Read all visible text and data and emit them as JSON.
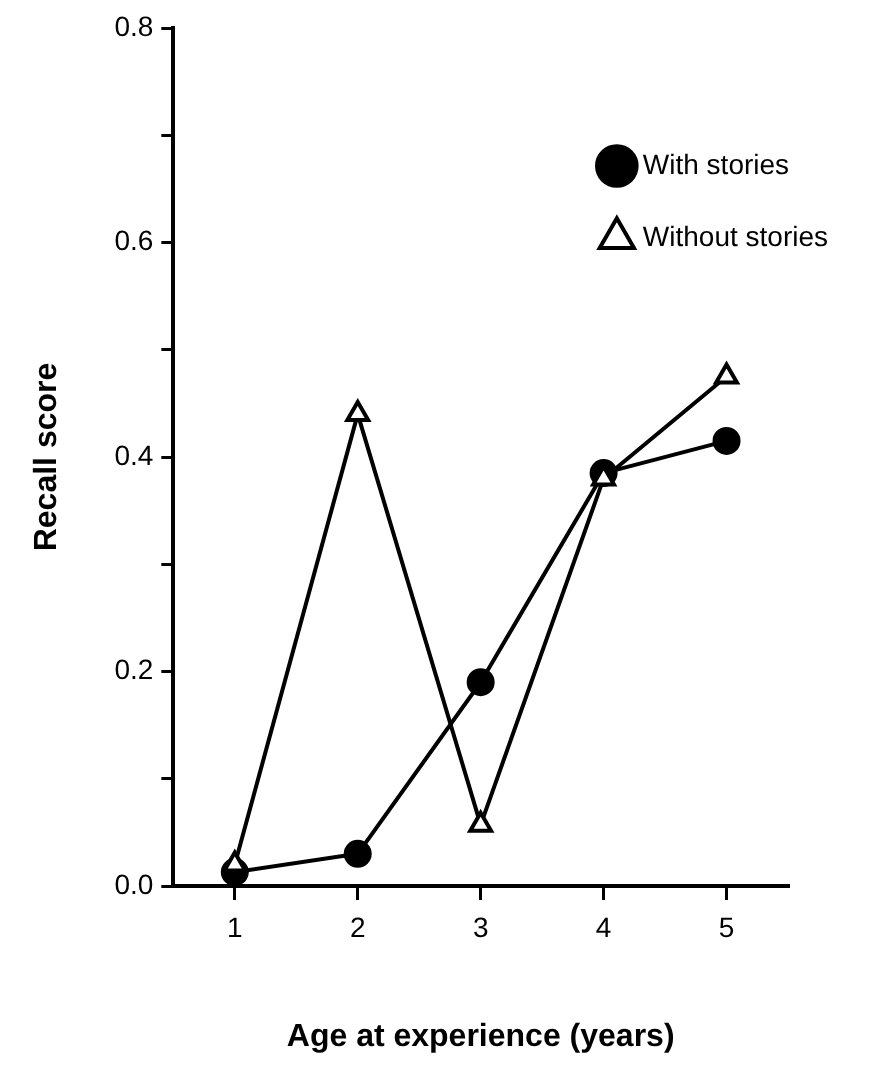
{
  "chart_data": {
    "type": "line",
    "xlabel": "Age at experience (years)",
    "ylabel": "Recall score",
    "x": [
      1,
      2,
      3,
      4,
      5
    ],
    "series": [
      {
        "name": "With stories",
        "color": "#000000",
        "marker": "circle",
        "values": [
          0.013,
          0.03,
          0.19,
          0.385,
          0.415
        ]
      },
      {
        "name": "Without stories",
        "color": "#000000",
        "marker": "triangle",
        "values": [
          0.02,
          0.44,
          0.057,
          0.38,
          0.475
        ]
      }
    ],
    "xlim": [
      0.5,
      5.5
    ],
    "xticks": [
      1,
      2,
      3,
      4,
      5
    ],
    "ylim": [
      0,
      0.8
    ],
    "yticks": [
      {
        "value": 0,
        "label": "0.0"
      },
      {
        "value": 0.1,
        "label": null
      },
      {
        "value": 0.2,
        "label": "0.2"
      },
      {
        "value": 0.3,
        "label": null
      },
      {
        "value": 0.4,
        "label": "0.4"
      },
      {
        "value": 0.5,
        "label": null
      },
      {
        "value": 0.6,
        "label": "0.6"
      },
      {
        "value": 0.7,
        "label": null
      },
      {
        "value": 0.8,
        "label": "0.8"
      }
    ],
    "grid": false,
    "legend": "top right",
    "line_style": "solid"
  }
}
